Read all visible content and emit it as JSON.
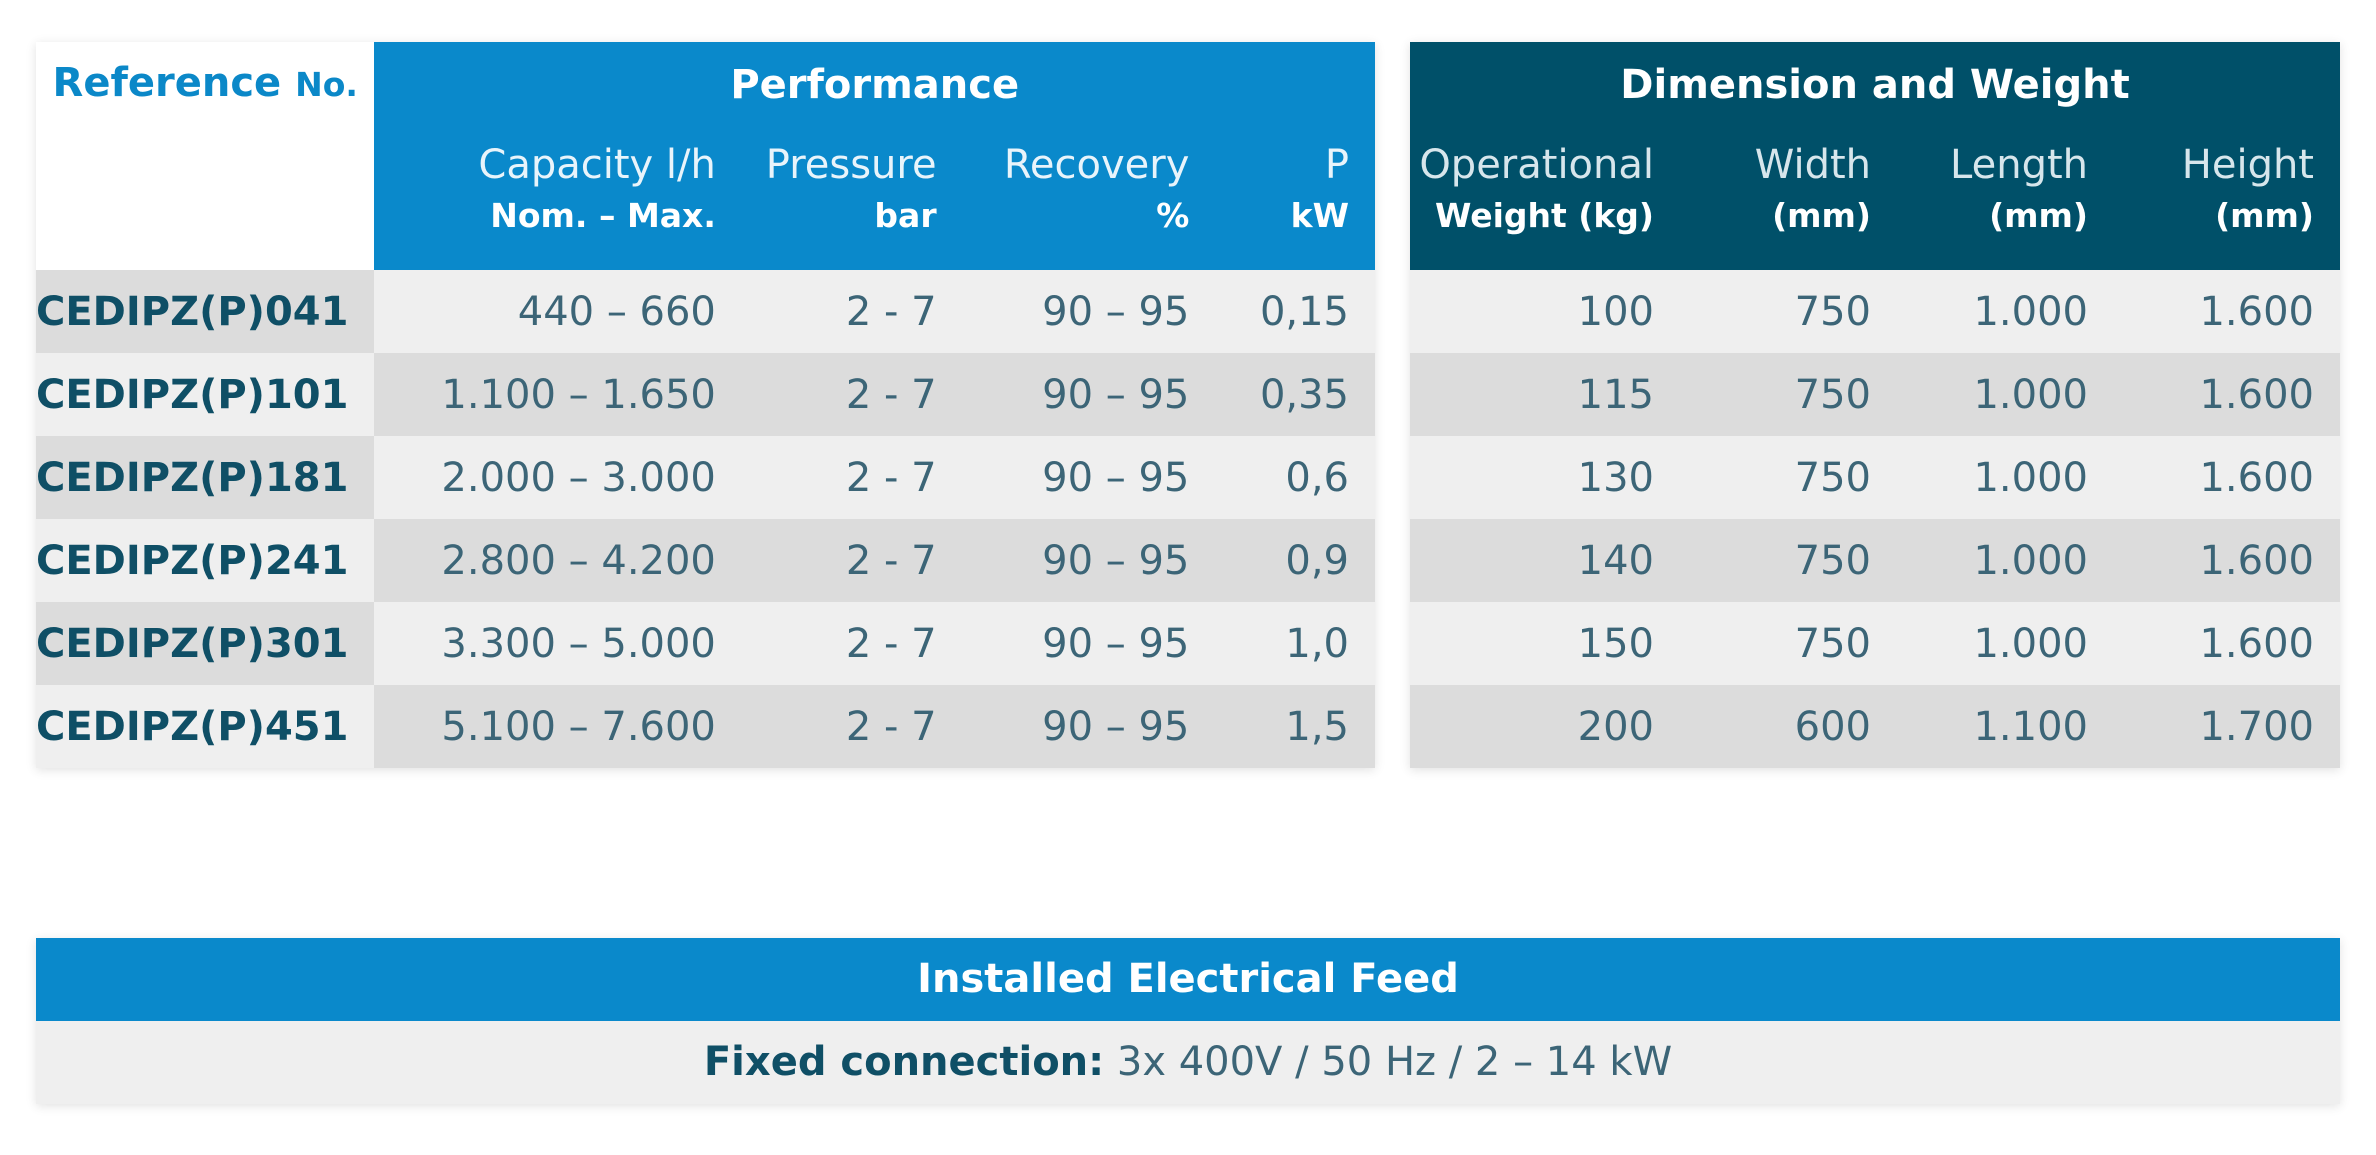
{
  "performance_table": {
    "reference_label": "Reference",
    "reference_no_label": "No.",
    "group_title": "Performance",
    "columns": [
      {
        "top": "Capacity l/h",
        "bottom": "Nom. – Max."
      },
      {
        "top": "Pressure",
        "bottom": "bar"
      },
      {
        "top": "Recovery",
        "bottom": "%"
      },
      {
        "top": "P",
        "bottom": "kW"
      }
    ],
    "rows": [
      {
        "ref": "CEDIPZ(P)041",
        "capacity": "440 – 660",
        "pressure": "2 - 7",
        "recovery": "90 – 95",
        "power": "0,15"
      },
      {
        "ref": "CEDIPZ(P)101",
        "capacity": "1.100 – 1.650",
        "pressure": "2 - 7",
        "recovery": "90 – 95",
        "power": "0,35"
      },
      {
        "ref": "CEDIPZ(P)181",
        "capacity": "2.000 – 3.000",
        "pressure": "2 - 7",
        "recovery": "90 – 95",
        "power": "0,6"
      },
      {
        "ref": "CEDIPZ(P)241",
        "capacity": "2.800 – 4.200",
        "pressure": "2 - 7",
        "recovery": "90 – 95",
        "power": "0,9"
      },
      {
        "ref": "CEDIPZ(P)301",
        "capacity": "3.300 – 5.000",
        "pressure": "2 - 7",
        "recovery": "90 – 95",
        "power": "1,0"
      },
      {
        "ref": "CEDIPZ(P)451",
        "capacity": "5.100 – 7.600",
        "pressure": "2 - 7",
        "recovery": "90 – 95",
        "power": "1,5"
      }
    ]
  },
  "dimension_table": {
    "group_title": "Dimension and Weight",
    "columns": [
      {
        "top": "Operational",
        "bottom": "Weight (kg)"
      },
      {
        "top": "Width",
        "bottom": "(mm)"
      },
      {
        "top": "Length",
        "bottom": "(mm)"
      },
      {
        "top": "Height",
        "bottom": "(mm)"
      }
    ],
    "rows": [
      {
        "weight": "100",
        "width": "750",
        "length": "1.000",
        "height": "1.600"
      },
      {
        "weight": "115",
        "width": "750",
        "length": "1.000",
        "height": "1.600"
      },
      {
        "weight": "130",
        "width": "750",
        "length": "1.000",
        "height": "1.600"
      },
      {
        "weight": "140",
        "width": "750",
        "length": "1.000",
        "height": "1.600"
      },
      {
        "weight": "150",
        "width": "750",
        "length": "1.000",
        "height": "1.600"
      },
      {
        "weight": "200",
        "width": "600",
        "length": "1.100",
        "height": "1.700"
      }
    ]
  },
  "electrical_feed": {
    "title": "Installed Electrical Feed",
    "label": "Fixed connection:",
    "value": "3x 400V / 50 Hz / 2 – 14 kW"
  },
  "colors": {
    "performance_blue": "#0a89cb",
    "dimension_teal": "#005069",
    "row_light": "#efefef",
    "row_dark": "#dcdcdc"
  }
}
